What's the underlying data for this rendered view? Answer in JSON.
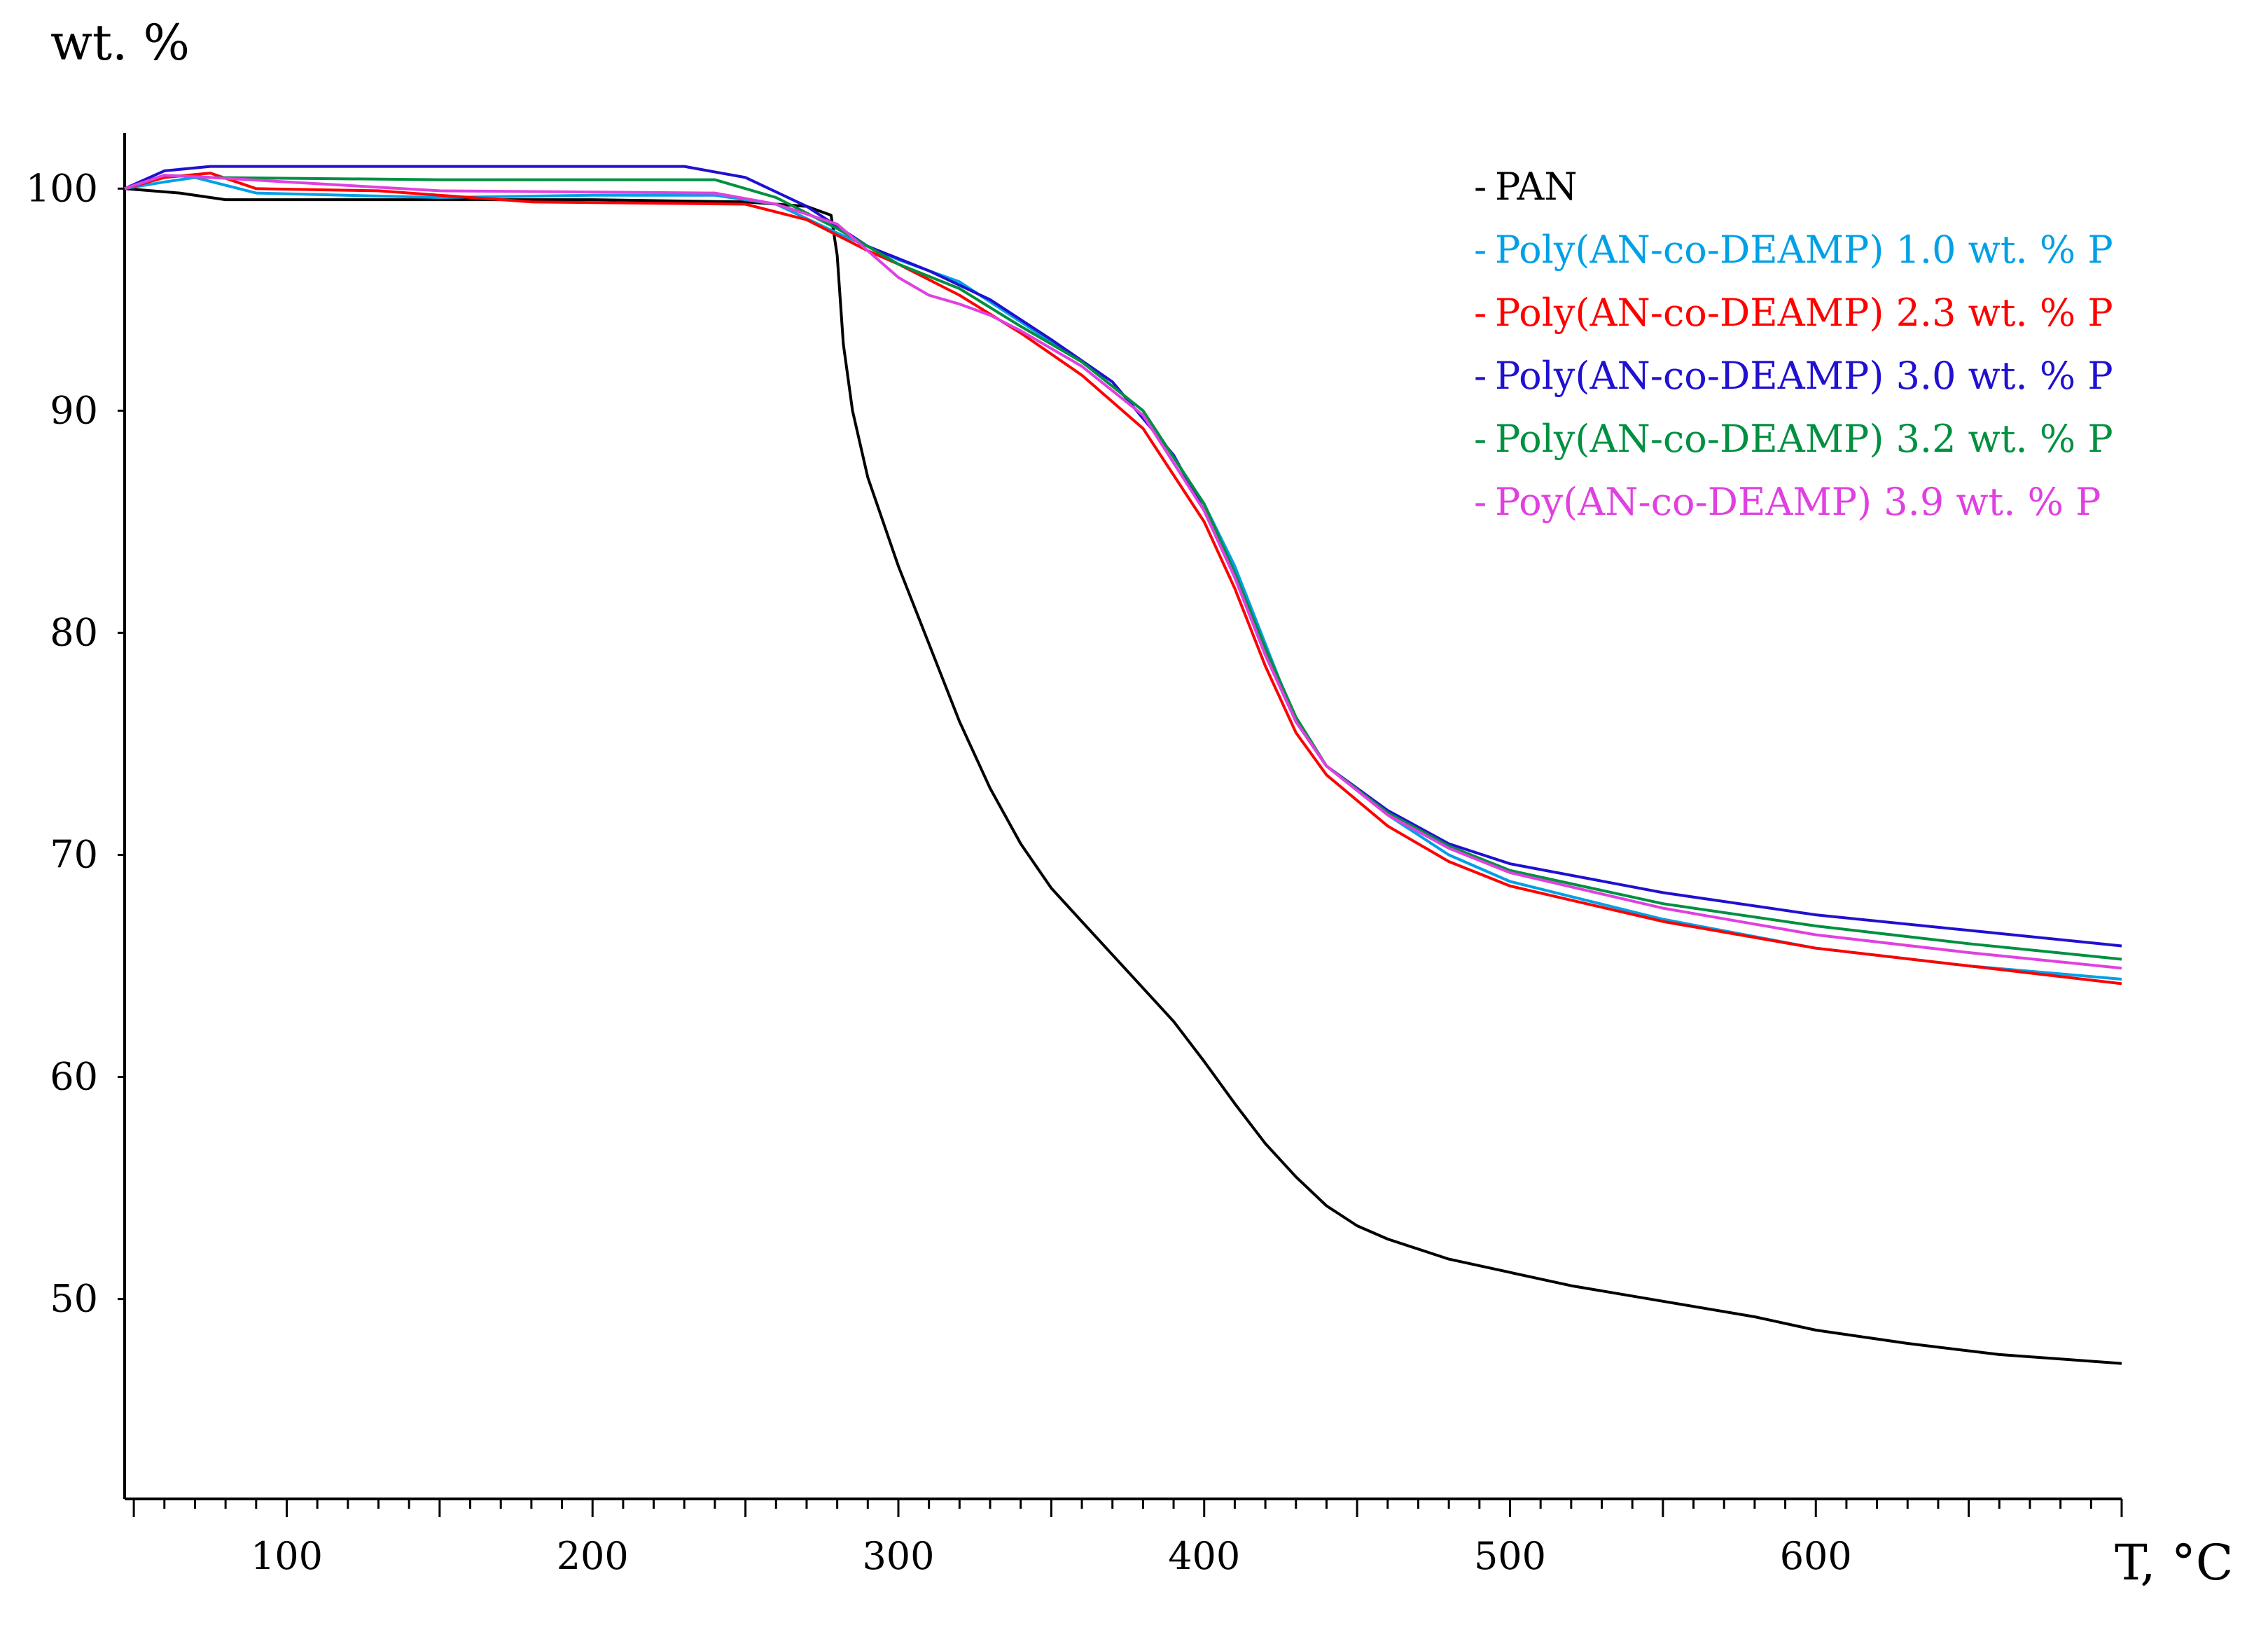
{
  "chart_data": {
    "type": "line",
    "title": "",
    "ylabel": "wt. %",
    "xlabel": "T, °C",
    "xlim": [
      47,
      700
    ],
    "ylim": [
      41,
      102.5
    ],
    "grid": false,
    "legend_position": "top-right",
    "x_ticks": [
      {
        "value": 100,
        "label": "100"
      },
      {
        "value": 200,
        "label": "200"
      },
      {
        "value": 300,
        "label": "300"
      },
      {
        "value": 400,
        "label": "400"
      },
      {
        "value": 500,
        "label": "500"
      },
      {
        "value": 600,
        "label": "600"
      }
    ],
    "y_ticks": [
      {
        "value": 100,
        "label": "100"
      },
      {
        "value": 90,
        "label": "90"
      },
      {
        "value": 80,
        "label": "80"
      },
      {
        "value": 70,
        "label": "70"
      },
      {
        "value": 60,
        "label": "60"
      },
      {
        "value": 50,
        "label": "50"
      }
    ],
    "series": [
      {
        "name": "PAN",
        "color": "#000000",
        "points": [
          [
            47,
            100
          ],
          [
            65,
            99.8
          ],
          [
            80,
            99.5
          ],
          [
            120,
            99.5
          ],
          [
            200,
            99.5
          ],
          [
            250,
            99.4
          ],
          [
            270,
            99.2
          ],
          [
            278,
            98.8
          ],
          [
            280,
            97
          ],
          [
            282,
            93
          ],
          [
            285,
            90
          ],
          [
            290,
            87
          ],
          [
            300,
            83
          ],
          [
            310,
            79.5
          ],
          [
            320,
            76
          ],
          [
            330,
            73
          ],
          [
            340,
            70.5
          ],
          [
            350,
            68.5
          ],
          [
            360,
            67
          ],
          [
            370,
            65.5
          ],
          [
            380,
            64
          ],
          [
            390,
            62.5
          ],
          [
            400,
            60.7
          ],
          [
            410,
            58.8
          ],
          [
            420,
            57
          ],
          [
            430,
            55.5
          ],
          [
            440,
            54.2
          ],
          [
            450,
            53.3
          ],
          [
            460,
            52.7
          ],
          [
            480,
            51.8
          ],
          [
            500,
            51.2
          ],
          [
            520,
            50.6
          ],
          [
            550,
            49.9
          ],
          [
            580,
            49.2
          ],
          [
            600,
            48.6
          ],
          [
            630,
            48
          ],
          [
            660,
            47.5
          ],
          [
            700,
            47.1
          ]
        ]
      },
      {
        "name": "Poly(AN-co-DEAMP) 1.0 wt. % P",
        "color": "#00a0e6",
        "points": [
          [
            47,
            100
          ],
          [
            60,
            100.3
          ],
          [
            70,
            100.5
          ],
          [
            90,
            99.8
          ],
          [
            150,
            99.6
          ],
          [
            200,
            99.7
          ],
          [
            240,
            99.7
          ],
          [
            260,
            99.3
          ],
          [
            280,
            98
          ],
          [
            300,
            96.8
          ],
          [
            320,
            95.8
          ],
          [
            340,
            94
          ],
          [
            360,
            92.2
          ],
          [
            380,
            90
          ],
          [
            400,
            85.8
          ],
          [
            410,
            83
          ],
          [
            420,
            79.5
          ],
          [
            430,
            76
          ],
          [
            440,
            74
          ],
          [
            460,
            71.8
          ],
          [
            480,
            70
          ],
          [
            500,
            68.8
          ],
          [
            550,
            67.1
          ],
          [
            600,
            65.8
          ],
          [
            650,
            65
          ],
          [
            700,
            64.4
          ]
        ]
      },
      {
        "name": "Poly(AN-co-DEAMP) 2.3 wt. % P",
        "color": "#ff0000",
        "points": [
          [
            47,
            100
          ],
          [
            60,
            100.5
          ],
          [
            75,
            100.7
          ],
          [
            90,
            100
          ],
          [
            130,
            99.9
          ],
          [
            180,
            99.4
          ],
          [
            250,
            99.3
          ],
          [
            270,
            98.6
          ],
          [
            290,
            97.2
          ],
          [
            300,
            96.6
          ],
          [
            320,
            95.2
          ],
          [
            340,
            93.5
          ],
          [
            360,
            91.6
          ],
          [
            380,
            89.2
          ],
          [
            400,
            85
          ],
          [
            410,
            82
          ],
          [
            420,
            78.5
          ],
          [
            430,
            75.5
          ],
          [
            440,
            73.6
          ],
          [
            460,
            71.3
          ],
          [
            480,
            69.7
          ],
          [
            500,
            68.6
          ],
          [
            550,
            67
          ],
          [
            600,
            65.8
          ],
          [
            650,
            65
          ],
          [
            700,
            64.2
          ]
        ]
      },
      {
        "name": "Poly(AN-co-DEAMP) 3.0 wt. % P",
        "color": "#2010d0",
        "points": [
          [
            47,
            100
          ],
          [
            60,
            100.8
          ],
          [
            75,
            101
          ],
          [
            150,
            101
          ],
          [
            230,
            101
          ],
          [
            250,
            100.5
          ],
          [
            270,
            99.2
          ],
          [
            290,
            97.4
          ],
          [
            310,
            96.3
          ],
          [
            330,
            95
          ],
          [
            350,
            93.2
          ],
          [
            370,
            91.3
          ],
          [
            390,
            88
          ],
          [
            400,
            85.5
          ],
          [
            410,
            82.5
          ],
          [
            420,
            79
          ],
          [
            430,
            76
          ],
          [
            440,
            74
          ],
          [
            460,
            72
          ],
          [
            480,
            70.5
          ],
          [
            500,
            69.6
          ],
          [
            550,
            68.3
          ],
          [
            600,
            67.3
          ],
          [
            650,
            66.6
          ],
          [
            700,
            65.9
          ]
        ]
      },
      {
        "name": "Poly(AN-co-DEAMP) 3.2 wt. % P",
        "color": "#009040",
        "points": [
          [
            47,
            100
          ],
          [
            60,
            100.6
          ],
          [
            75,
            100.5
          ],
          [
            150,
            100.4
          ],
          [
            240,
            100.4
          ],
          [
            260,
            99.6
          ],
          [
            280,
            98.2
          ],
          [
            300,
            96.6
          ],
          [
            320,
            95.5
          ],
          [
            340,
            93.8
          ],
          [
            360,
            92.2
          ],
          [
            380,
            90
          ],
          [
            400,
            85.8
          ],
          [
            410,
            82.7
          ],
          [
            420,
            79.3
          ],
          [
            430,
            76.2
          ],
          [
            440,
            74
          ],
          [
            460,
            71.9
          ],
          [
            480,
            70.4
          ],
          [
            500,
            69.3
          ],
          [
            550,
            67.8
          ],
          [
            600,
            66.8
          ],
          [
            650,
            66
          ],
          [
            700,
            65.3
          ]
        ]
      },
      {
        "name": "Poy(AN-co-DEAMP) 3.9 wt. % P",
        "color": "#e040e0",
        "points": [
          [
            47,
            100
          ],
          [
            60,
            100.6
          ],
          [
            75,
            100.5
          ],
          [
            150,
            99.9
          ],
          [
            240,
            99.8
          ],
          [
            260,
            99.3
          ],
          [
            280,
            98.4
          ],
          [
            290,
            97.2
          ],
          [
            300,
            96
          ],
          [
            310,
            95.2
          ],
          [
            320,
            94.8
          ],
          [
            330,
            94.3
          ],
          [
            340,
            93.6
          ],
          [
            360,
            92
          ],
          [
            380,
            89.8
          ],
          [
            400,
            85.5
          ],
          [
            410,
            82.5
          ],
          [
            420,
            79
          ],
          [
            430,
            76
          ],
          [
            440,
            74
          ],
          [
            460,
            71.8
          ],
          [
            480,
            70.3
          ],
          [
            500,
            69.2
          ],
          [
            550,
            67.6
          ],
          [
            600,
            66.4
          ],
          [
            650,
            65.6
          ],
          [
            700,
            64.9
          ]
        ]
      }
    ]
  }
}
